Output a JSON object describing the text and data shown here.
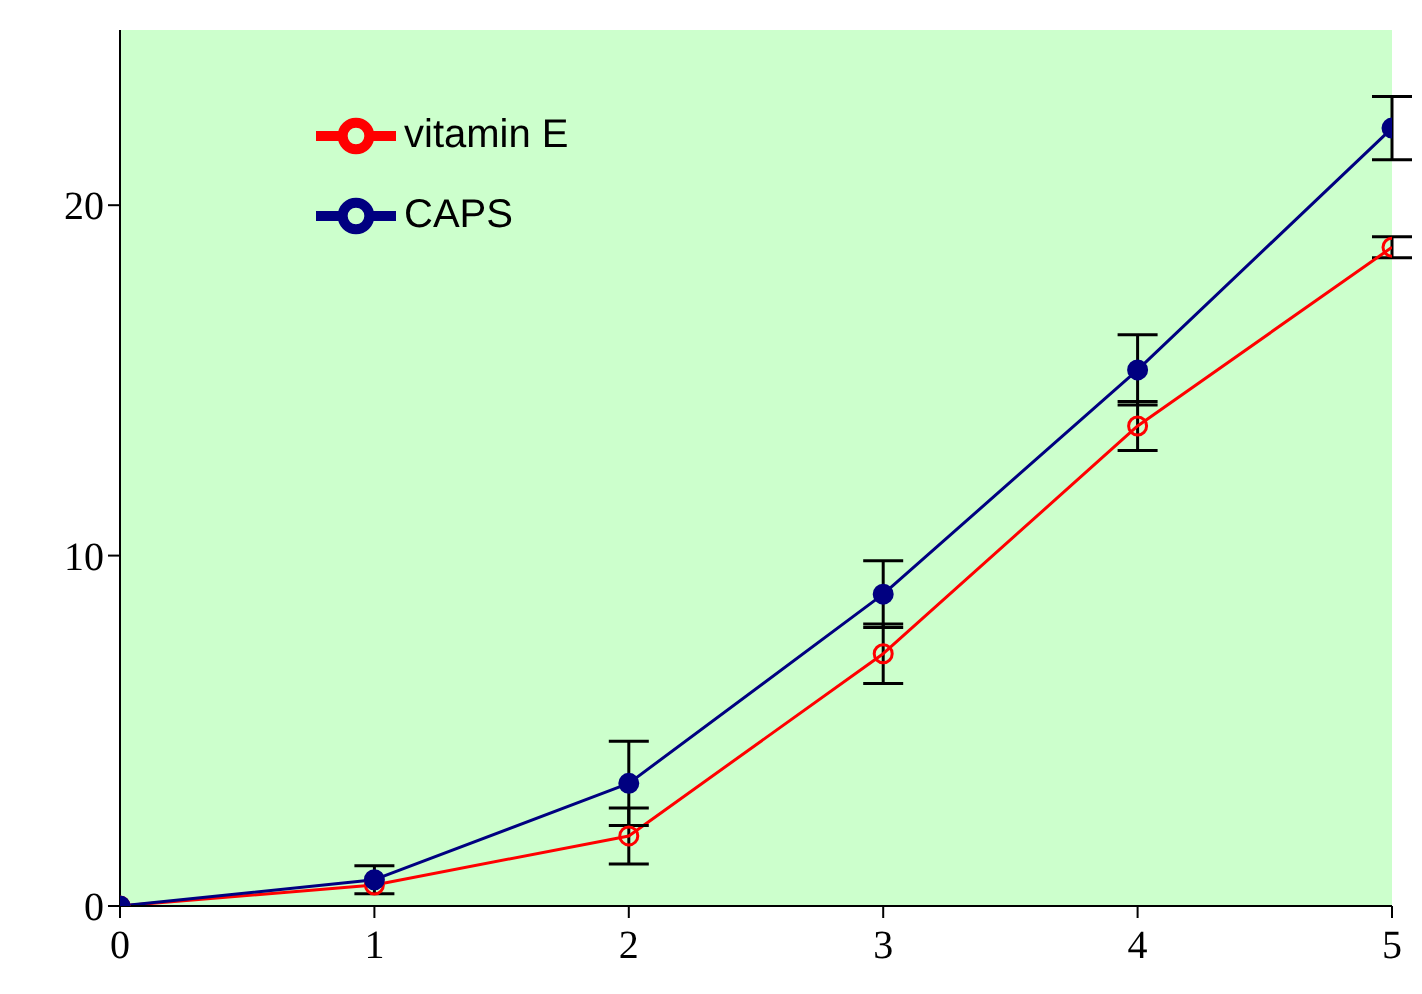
{
  "chart_data": {
    "type": "line",
    "x": [
      0,
      1,
      2,
      3,
      4,
      5
    ],
    "series": [
      {
        "name": "vitamin E",
        "color": "#ff0000",
        "values": [
          0,
          0.6,
          2.0,
          7.2,
          13.7,
          18.8
        ],
        "errors": [
          null,
          null,
          0.8,
          0.85,
          0.7,
          0.3
        ]
      },
      {
        "name": "CAPS",
        "color": "#000080",
        "values": [
          0,
          0.75,
          3.5,
          8.9,
          15.3,
          22.2
        ],
        "errors": [
          null,
          0.4,
          1.2,
          0.95,
          1.0,
          0.9
        ]
      }
    ],
    "xlim": [
      0,
      5
    ],
    "xticks": [
      0,
      1,
      2,
      3,
      4,
      5
    ],
    "ylim": [
      0,
      25
    ],
    "yticks": [
      0,
      10,
      20
    ],
    "grid": false,
    "legend": "top left",
    "marker": "circle",
    "line_style": "solid"
  }
}
